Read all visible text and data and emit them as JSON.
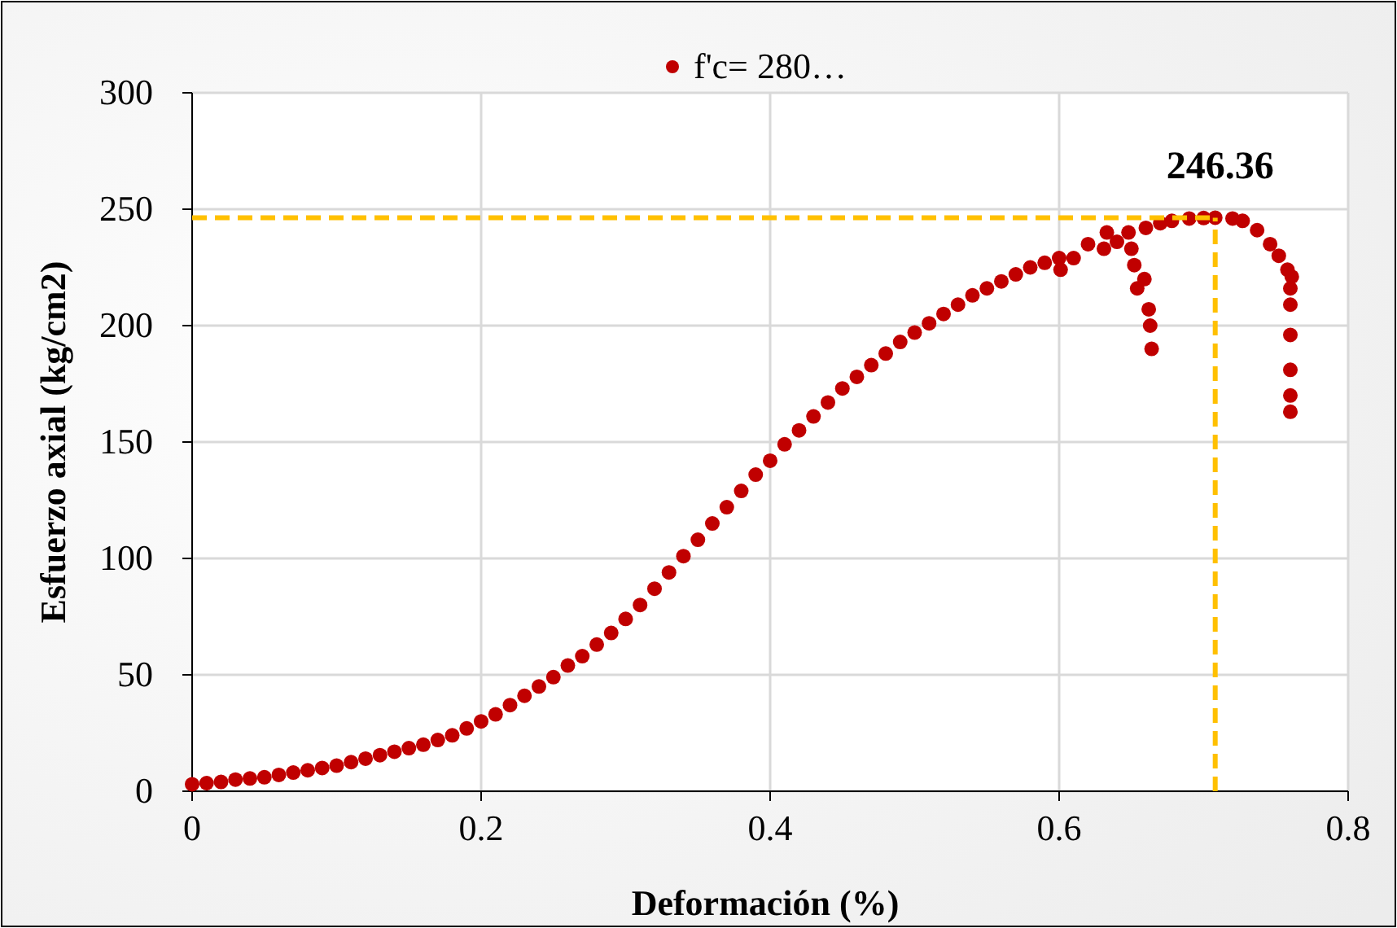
{
  "chart_data": {
    "type": "scatter",
    "xlabel": "Deformación (%)",
    "ylabel": "Esfuerzo axial (kg/cm2)",
    "xlim": [
      0,
      0.8
    ],
    "xticks": [
      0,
      0.2,
      0.4,
      0.6,
      0.8
    ],
    "ylim": [
      0,
      300
    ],
    "yticks": [
      0,
      50,
      100,
      150,
      200,
      250,
      300
    ],
    "grid": true,
    "legend": "top",
    "marker": "circle",
    "series": [
      {
        "name": "f'c= 280…",
        "color": "#c00000",
        "x": [
          0,
          0.01,
          0.02,
          0.03,
          0.04,
          0.05,
          0.06,
          0.07,
          0.08,
          0.09,
          0.1,
          0.11,
          0.12,
          0.13,
          0.14,
          0.15,
          0.16,
          0.17,
          0.18,
          0.19,
          0.2,
          0.21,
          0.22,
          0.23,
          0.24,
          0.25,
          0.26,
          0.27,
          0.28,
          0.29,
          0.3,
          0.31,
          0.32,
          0.33,
          0.34,
          0.35,
          0.36,
          0.37,
          0.38,
          0.39,
          0.4,
          0.41,
          0.42,
          0.43,
          0.44,
          0.45,
          0.46,
          0.47,
          0.48,
          0.49,
          0.5,
          0.51,
          0.52,
          0.53,
          0.54,
          0.55,
          0.56,
          0.57,
          0.58,
          0.59,
          0.6,
          0.601,
          0.61,
          0.62,
          0.633,
          0.648,
          0.66,
          0.67,
          0.678,
          0.69,
          0.7,
          0.708,
          0.72,
          0.727,
          0.737,
          0.746,
          0.752,
          0.758,
          0.761,
          0.76,
          0.76,
          0.76,
          0.76,
          0.76,
          0.76,
          0.631,
          0.64,
          0.65,
          0.652,
          0.659,
          0.654,
          0.662,
          0.663,
          0.664
        ],
        "values": [
          3,
          3.5,
          4,
          5,
          5.5,
          6,
          7,
          8,
          9,
          10,
          11,
          12.5,
          14,
          15.5,
          17,
          18.5,
          20,
          22,
          24,
          27,
          30,
          33,
          37,
          41,
          45,
          49,
          54,
          58,
          63,
          68,
          74,
          80,
          87,
          94,
          101,
          108,
          115,
          122,
          129,
          136,
          142,
          149,
          155,
          161,
          167,
          173,
          178,
          183,
          188,
          193,
          197,
          201,
          205,
          209,
          213,
          216,
          219,
          222,
          225,
          227,
          229,
          224,
          229,
          235,
          240,
          240,
          242,
          244,
          245,
          246,
          246.2,
          246.36,
          246,
          245,
          241,
          235,
          230,
          224,
          221,
          216,
          209,
          196,
          181,
          170,
          163,
          233,
          236,
          233,
          226,
          220,
          216,
          207,
          200,
          190
        ]
      }
    ],
    "ref_lines": [
      {
        "axis": "y",
        "value": 246.36,
        "color": "#ffc000",
        "line_style": "dashed"
      },
      {
        "axis": "x",
        "value": 0.708,
        "color": "#ffc000",
        "line_style": "dashed"
      }
    ],
    "annotations": [
      {
        "text": "246.36",
        "x": 0.708,
        "y": 246.36
      }
    ]
  }
}
